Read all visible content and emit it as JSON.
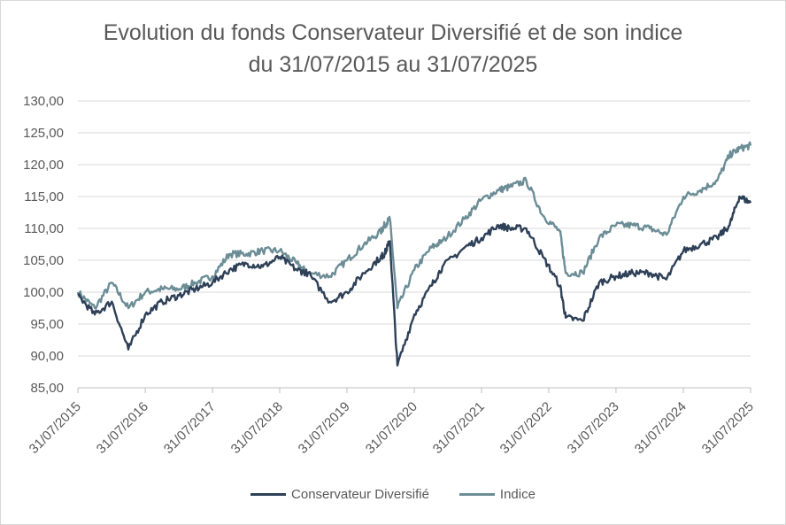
{
  "chart_data": {
    "type": "line",
    "title": "Evolution du fonds Conservateur Diversifié et de son indice",
    "subtitle": "du 31/07/2015 au 31/07/2025",
    "xlabel": "",
    "ylabel": "",
    "ylim": [
      85,
      130
    ],
    "yticks": [
      "130,00",
      "125,00",
      "120,00",
      "115,00",
      "110,00",
      "105,00",
      "100,00",
      "95,00",
      "90,00",
      "85,00"
    ],
    "xticks": [
      "31/07/2015",
      "31/07/2016",
      "31/07/2017",
      "31/07/2018",
      "31/07/2019",
      "31/07/2020",
      "31/07/2021",
      "31/07/2022",
      "31/07/2023",
      "31/07/2024",
      "31/07/2025"
    ],
    "grid": "horizontal",
    "legend_position": "bottom",
    "x": [
      "2015-07-31",
      "2015-10-31",
      "2016-01-31",
      "2016-04-30",
      "2016-07-31",
      "2016-10-31",
      "2017-01-31",
      "2017-04-30",
      "2017-07-31",
      "2017-10-31",
      "2018-01-31",
      "2018-04-30",
      "2018-07-31",
      "2018-10-31",
      "2018-12-31",
      "2019-04-30",
      "2019-07-31",
      "2019-10-31",
      "2020-01-31",
      "2020-02-20",
      "2020-03-20",
      "2020-04-30",
      "2020-07-31",
      "2020-10-31",
      "2020-12-31",
      "2021-04-30",
      "2021-07-31",
      "2021-10-31",
      "2021-12-31",
      "2022-03-31",
      "2022-06-30",
      "2022-09-30",
      "2022-10-31",
      "2023-01-31",
      "2023-04-30",
      "2023-07-31",
      "2023-10-31",
      "2024-01-31",
      "2024-04-30",
      "2024-07-31",
      "2024-10-31",
      "2025-01-31",
      "2025-04-08",
      "2025-05-31",
      "2025-07-31"
    ],
    "series": [
      {
        "name": "Conservateur Diversifié",
        "color": "#2e4057",
        "values": [
          99.5,
          96.5,
          98.5,
          91.0,
          96.5,
          98.5,
          99.5,
          100.5,
          101.5,
          103.5,
          104.5,
          104.0,
          105.5,
          103.5,
          103.0,
          98.5,
          100.0,
          103.0,
          105.5,
          106.0,
          108.0,
          88.5,
          96.5,
          101.0,
          104.0,
          107.0,
          108.5,
          110.5,
          110.0,
          110.0,
          105.5,
          101.0,
          96.0,
          95.5,
          101.5,
          102.5,
          103.0,
          103.0,
          102.0,
          106.5,
          107.5,
          108.5,
          110.5,
          115.0,
          114.0
        ]
      },
      {
        "name": "Indice",
        "color": "#6b8d96",
        "values": [
          100.0,
          97.5,
          101.5,
          97.5,
          100.0,
          100.5,
          100.5,
          101.5,
          102.5,
          106.0,
          106.0,
          106.5,
          106.5,
          104.5,
          103.0,
          102.5,
          105.0,
          107.5,
          109.5,
          110.5,
          111.5,
          97.5,
          103.5,
          107.0,
          108.0,
          111.5,
          114.5,
          116.0,
          116.5,
          117.5,
          112.0,
          109.5,
          103.0,
          103.0,
          108.5,
          110.5,
          110.5,
          110.0,
          109.0,
          115.0,
          116.0,
          117.5,
          121.5,
          122.5,
          123.0
        ]
      }
    ]
  }
}
